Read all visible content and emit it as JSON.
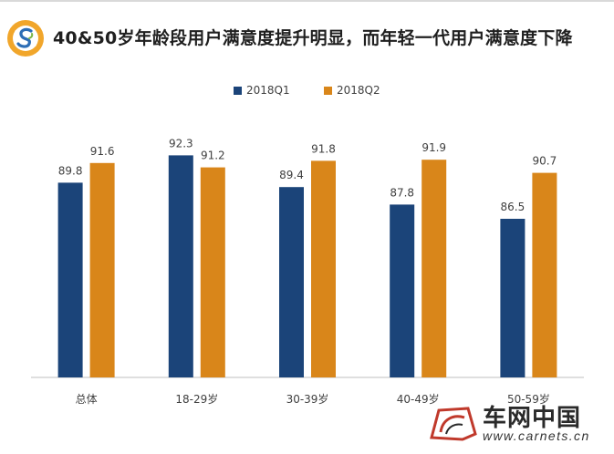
{
  "header": {
    "title": "40&50岁年龄段用户满意度提升明显，而年轻一代用户满意度下降"
  },
  "colors": {
    "q1": "#1b4479",
    "q2": "#d9861a"
  },
  "chart_data": {
    "type": "bar",
    "title": "40&50岁年龄段用户满意度提升明显，而年轻一代用户满意度下降",
    "xlabel": "",
    "ylabel": "",
    "categories": [
      "总体",
      "18-29岁",
      "30-39岁",
      "40-49岁",
      "50-59岁"
    ],
    "series": [
      {
        "name": "2018Q1",
        "values": [
          89.8,
          92.3,
          89.4,
          87.8,
          86.5
        ]
      },
      {
        "name": "2018Q2",
        "values": [
          91.6,
          91.2,
          91.8,
          91.9,
          90.7
        ]
      }
    ],
    "ylim": [
      72,
      93
    ],
    "grid": false,
    "legend": "top-center",
    "data_labels": true
  },
  "watermark": {
    "brand": "车网中国",
    "url": "www.carnets.cn"
  }
}
